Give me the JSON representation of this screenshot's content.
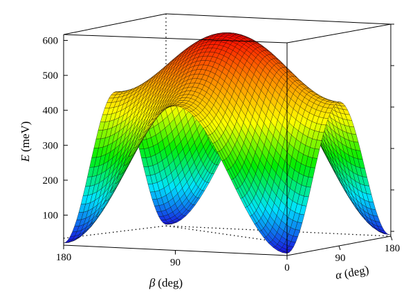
{
  "chart_data": {
    "type": "surface3d",
    "title": "",
    "zlabel": {
      "symbol": "E",
      "unit": "(meV)"
    },
    "xlabel": {
      "symbol": "β",
      "unit": "(deg)"
    },
    "ylabel": {
      "symbol": "α",
      "unit": "(deg)"
    },
    "zlim": [
      0,
      600
    ],
    "z_ticks": [
      "100",
      "200",
      "300",
      "400",
      "500",
      "600"
    ],
    "beta_range": [
      0,
      180
    ],
    "beta_ticks": [
      "0",
      "90",
      "180"
    ],
    "alpha_range": [
      0,
      180
    ],
    "alpha_ticks": [
      "90",
      "180"
    ],
    "surface_peak_E": 610,
    "surface_min_E": 20,
    "colormap": [
      "#1a10e0",
      "#00e5ff",
      "#00ee00",
      "#ffff00",
      "#ff8800",
      "#ff0000"
    ],
    "grid": false
  }
}
